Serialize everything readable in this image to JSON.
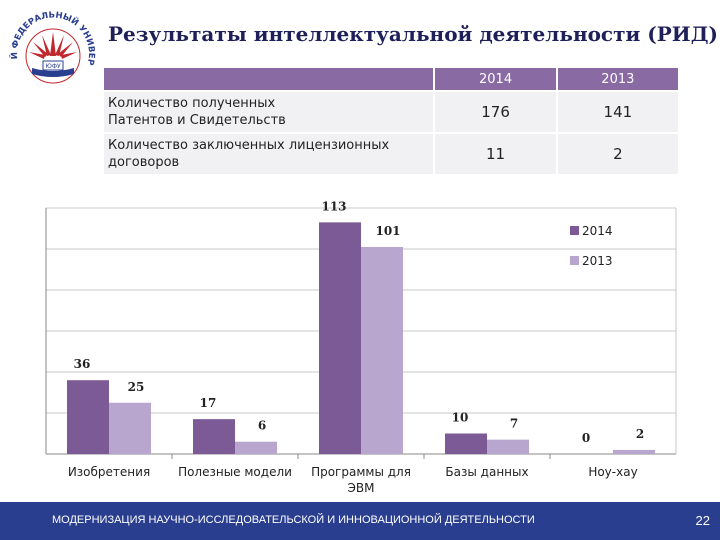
{
  "header": {
    "title": "Результаты интеллектуальной деятельности (РИД)",
    "logo_text": "ЮЖНЫЙ ФЕДЕРАЛЬНЫЙ УНИВЕРСИТЕТ",
    "logo_badge": "ЮФУ"
  },
  "table": {
    "columns": [
      "2014",
      "2013"
    ],
    "rows": [
      {
        "label_lines": [
          "Количество полученных",
          "Патентов и Свидетельств"
        ],
        "values": [
          "176",
          "141"
        ]
      },
      {
        "label_lines": [
          "Количество заключенных лицензионных",
          "договоров"
        ],
        "values": [
          "11",
          "2"
        ]
      }
    ]
  },
  "chart_data": {
    "type": "bar",
    "categories": [
      [
        "Изобретения"
      ],
      [
        "Полезные модели"
      ],
      [
        "Программы для",
        "ЭВМ"
      ],
      [
        "Базы данных"
      ],
      [
        "Ноу-хау"
      ]
    ],
    "series": [
      {
        "name": "2014",
        "values": [
          36,
          17,
          113,
          10,
          0
        ],
        "color": "#7b5a96"
      },
      {
        "name": "2013",
        "values": [
          25,
          6,
          101,
          7,
          2
        ],
        "color": "#b8a6cf"
      }
    ],
    "ylim": [
      0,
      120
    ],
    "grid": true,
    "legend": "right"
  },
  "footer": {
    "text": "МОДЕРНИЗАЦИЯ НАУЧНО-ИССЛЕДОВАТЕЛЬСКОЙ И ИННОВАЦИОННОЙ ДЕЯТЕЛЬНОСТИ",
    "page_number": "22"
  }
}
